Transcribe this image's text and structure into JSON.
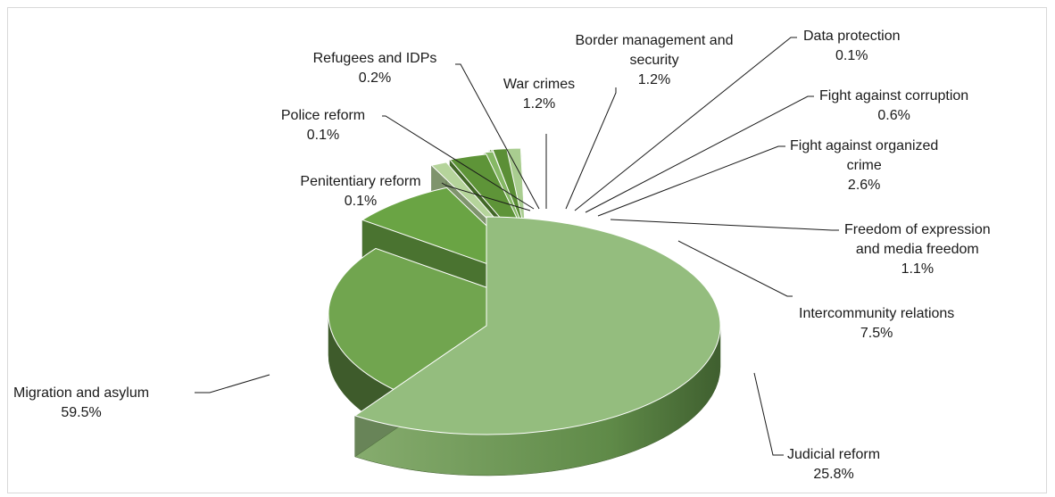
{
  "chart_data": {
    "type": "pie",
    "title": "",
    "slices": [
      {
        "label": "Migration and asylum",
        "value": 59.5,
        "display": "59.5%",
        "color": "#94bd7e"
      },
      {
        "label": "Judicial reform",
        "value": 25.8,
        "display": "25.8%",
        "color": "#71a54f"
      },
      {
        "label": "Intercommunity relations",
        "value": 7.5,
        "display": "7.5%",
        "color": "#6aa444"
      },
      {
        "label": "Freedom of expression and media freedom",
        "value": 1.1,
        "display": "1.1%",
        "color": "#b5d49b"
      },
      {
        "label": "Fight against organized crime",
        "value": 2.6,
        "display": "2.6%",
        "color": "#5e9438"
      },
      {
        "label": "Fight against corruption",
        "value": 0.6,
        "display": "0.6%",
        "color": "#86b865"
      },
      {
        "label": "Data protection",
        "value": 0.1,
        "display": "0.1%",
        "color": "#4e7e2e"
      },
      {
        "label": "Border management and security",
        "value": 1.2,
        "display": "1.2%",
        "color": "#5b8f36"
      },
      {
        "label": "War crimes",
        "value": 1.2,
        "display": "1.2%",
        "color": "#a9cd90"
      },
      {
        "label": "Refugees and IDPs",
        "value": 0.2,
        "display": "0.2%",
        "color": "#c6dfb5"
      },
      {
        "label": "Police reform",
        "value": 0.1,
        "display": "0.1%",
        "color": "#d3e6c6"
      },
      {
        "label": "Penitentiary reform",
        "value": 0.1,
        "display": "0.1%",
        "color": "#e2eed8"
      }
    ]
  }
}
